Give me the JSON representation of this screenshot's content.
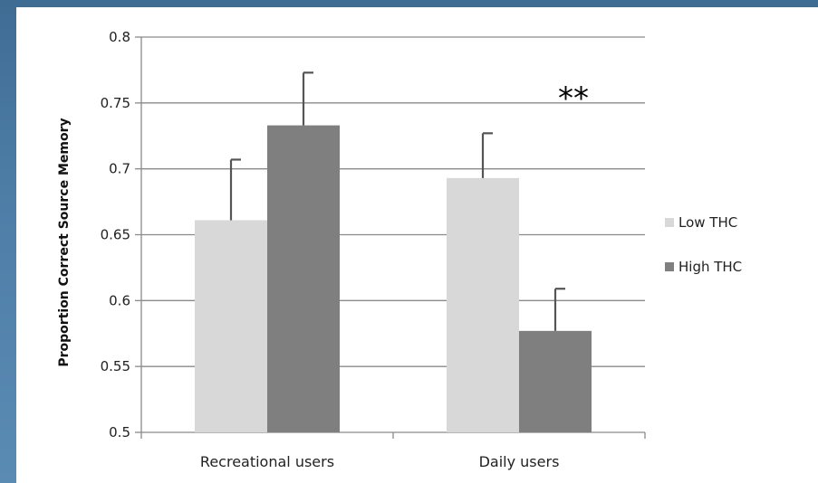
{
  "chart_data": {
    "type": "bar",
    "categories": [
      "Recreational users",
      "Daily users"
    ],
    "series": [
      {
        "name": "Low THC",
        "values": [
          0.661,
          0.693
        ],
        "error": [
          0.046,
          0.034
        ],
        "color": "#d8d8d8"
      },
      {
        "name": "High THC",
        "values": [
          0.733,
          0.577
        ],
        "error": [
          0.04,
          0.032
        ],
        "color": "#7f7f7f"
      }
    ],
    "ylabel": "Proportion Correct Source Memory",
    "xlabel": "",
    "ylim": [
      0.5,
      0.8
    ],
    "yticks": [
      "0.5",
      "0.55",
      "0.6",
      "0.65",
      "0.7",
      "0.75",
      "0.8"
    ],
    "grid": true,
    "legend_position": "right",
    "annotations": [
      {
        "text": "**",
        "category": "Daily users"
      }
    ]
  }
}
